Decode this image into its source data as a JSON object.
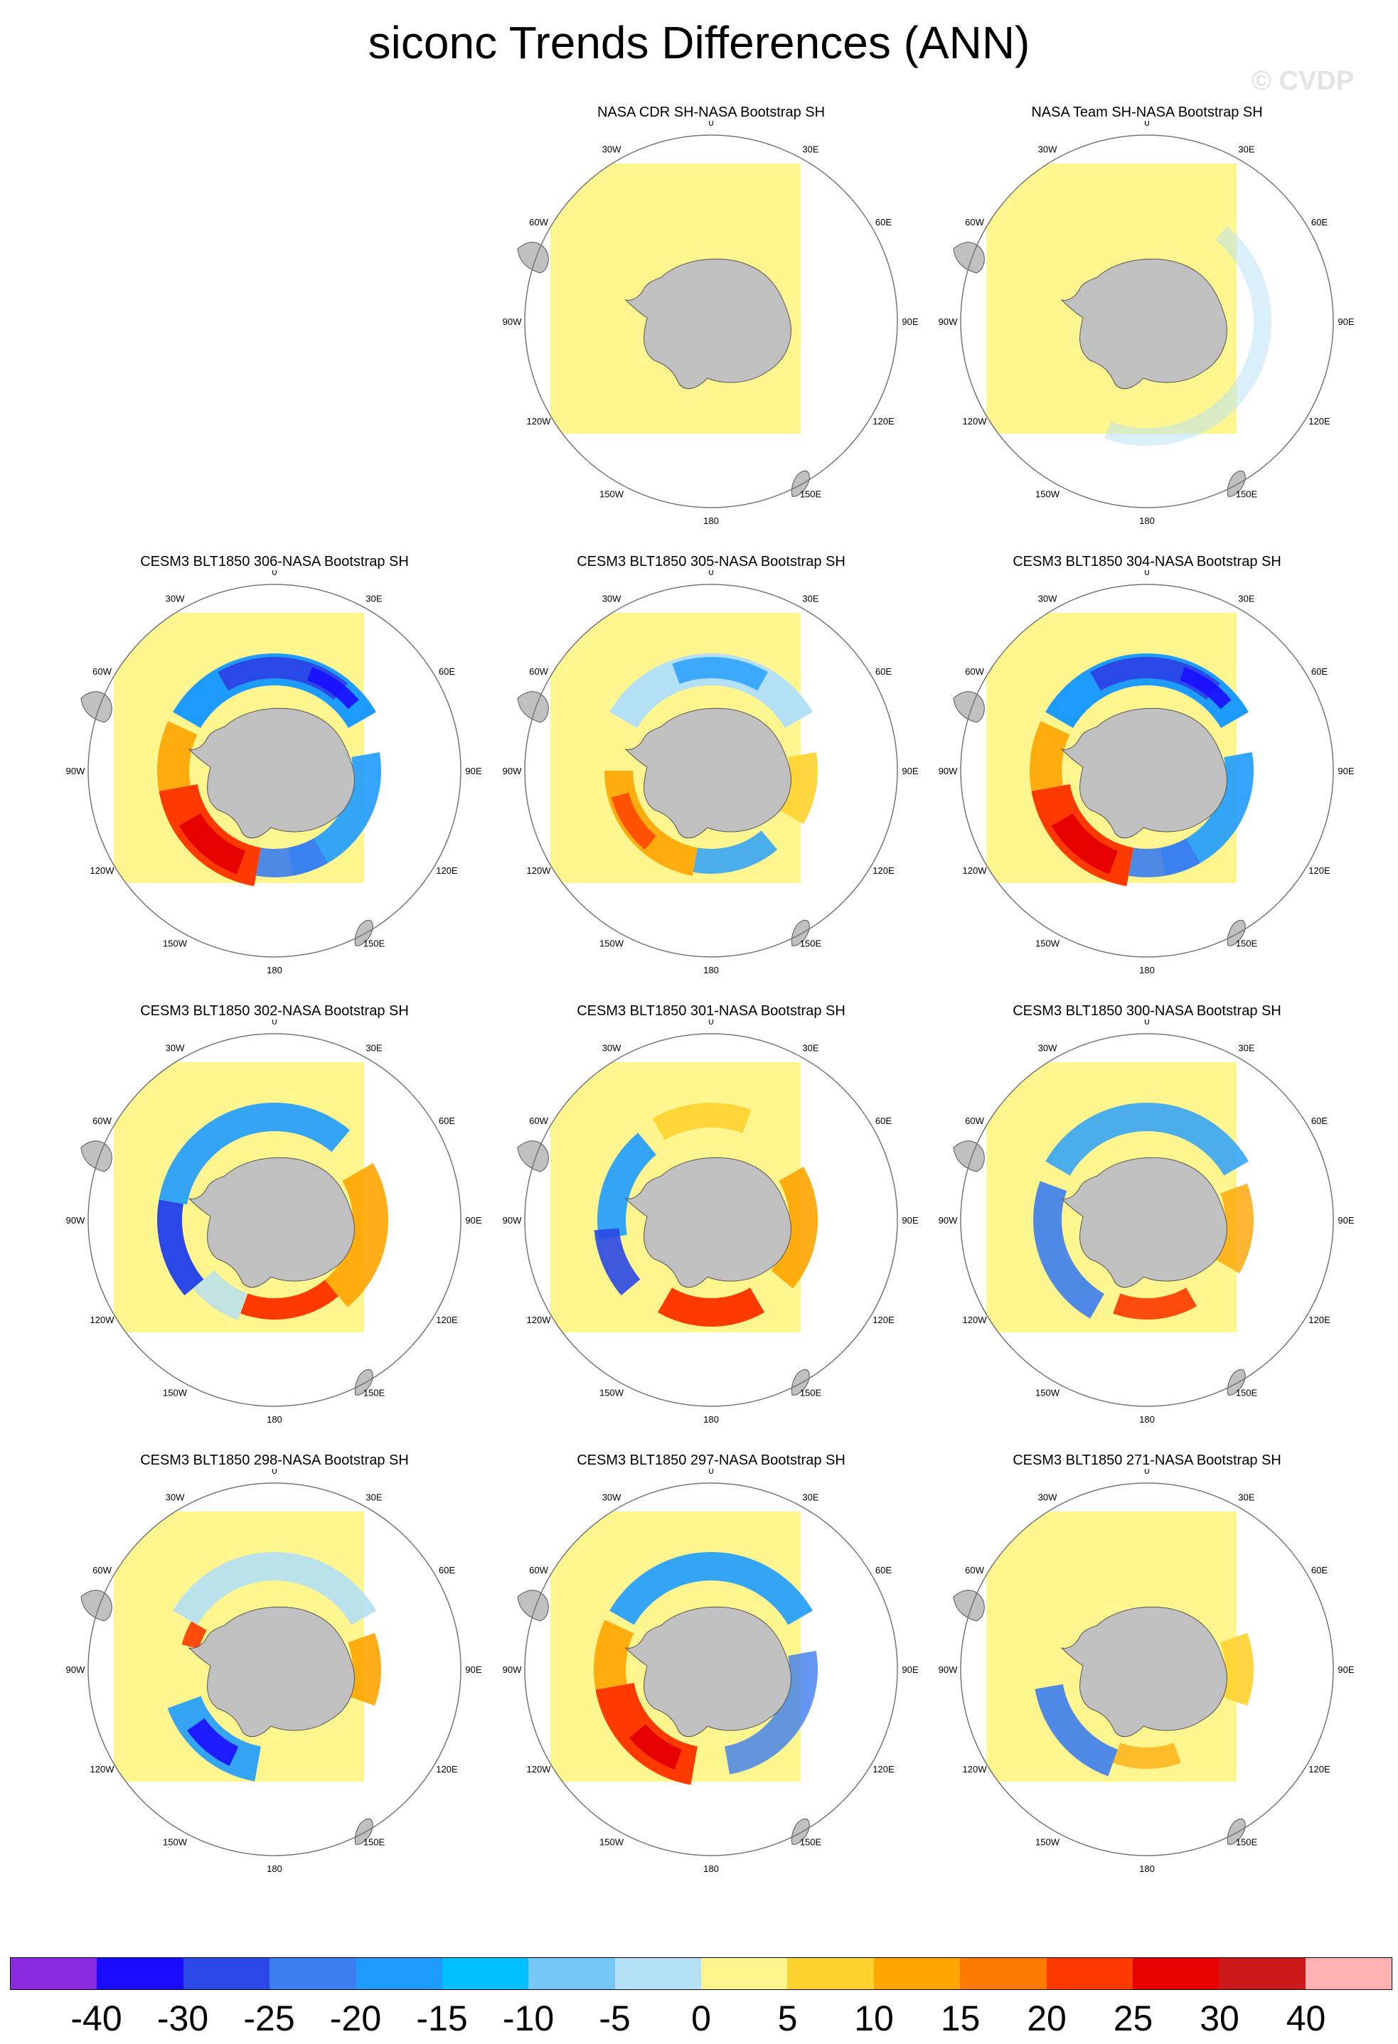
{
  "title": "siconc Trends Differences (ANN)",
  "watermark": "© CVDP",
  "lon_labels": [
    "0",
    "30E",
    "60E",
    "90E",
    "120E",
    "150E",
    "180",
    "150W",
    "120W",
    "90W",
    "60W",
    "30W"
  ],
  "panels": [
    {
      "title": "NASA CDR SH-NASA Bootstrap SH",
      "col": 1,
      "row": 0,
      "pattern": "obs-cdr"
    },
    {
      "title": "NASA Team SH-NASA Bootstrap SH",
      "col": 2,
      "row": 0,
      "pattern": "obs-team"
    },
    {
      "title": "CESM3 BLT1850 306-NASA Bootstrap SH",
      "col": 0,
      "row": 1,
      "pattern": "strong-pos-west"
    },
    {
      "title": "CESM3 BLT1850 305-NASA Bootstrap SH",
      "col": 1,
      "row": 1,
      "pattern": "pos-west"
    },
    {
      "title": "CESM3 BLT1850 304-NASA Bootstrap SH",
      "col": 2,
      "row": 1,
      "pattern": "strong-pos-west"
    },
    {
      "title": "CESM3 BLT1850 302-NASA Bootstrap SH",
      "col": 0,
      "row": 2,
      "pattern": "pos-east-south"
    },
    {
      "title": "CESM3 BLT1850 301-NASA Bootstrap SH",
      "col": 1,
      "row": 2,
      "pattern": "pos-south"
    },
    {
      "title": "CESM3 BLT1850 300-NASA Bootstrap SH",
      "col": 2,
      "row": 2,
      "pattern": "mixed"
    },
    {
      "title": "CESM3 BLT1850 298-NASA Bootstrap SH",
      "col": 0,
      "row": 3,
      "pattern": "neg-west"
    },
    {
      "title": "CESM3 BLT1850 297-NASA Bootstrap SH",
      "col": 1,
      "row": 3,
      "pattern": "pos-southwest"
    },
    {
      "title": "CESM3 BLT1850 271-NASA Bootstrap SH",
      "col": 2,
      "row": 3,
      "pattern": "neg-ring"
    }
  ],
  "colorbar": {
    "colors": [
      "#8a2be2",
      "#1a0dff",
      "#2a48e6",
      "#3c7df0",
      "#1e9bff",
      "#00bfff",
      "#75c8f5",
      "#b3e0f5",
      "#fff68f",
      "#ffd22e",
      "#ffa500",
      "#ff7a00",
      "#ff3a00",
      "#e60000",
      "#cc1a1a",
      "#ffb3b3"
    ],
    "ticks": [
      "-40",
      "-30",
      "-25",
      "-20",
      "-15",
      "-10",
      "-5",
      "0",
      "5",
      "10",
      "15",
      "20",
      "25",
      "30",
      "40"
    ]
  },
  "colors": {
    "background_field": "#fff68f",
    "land": "#c0c0c0",
    "coast": "#555555"
  }
}
